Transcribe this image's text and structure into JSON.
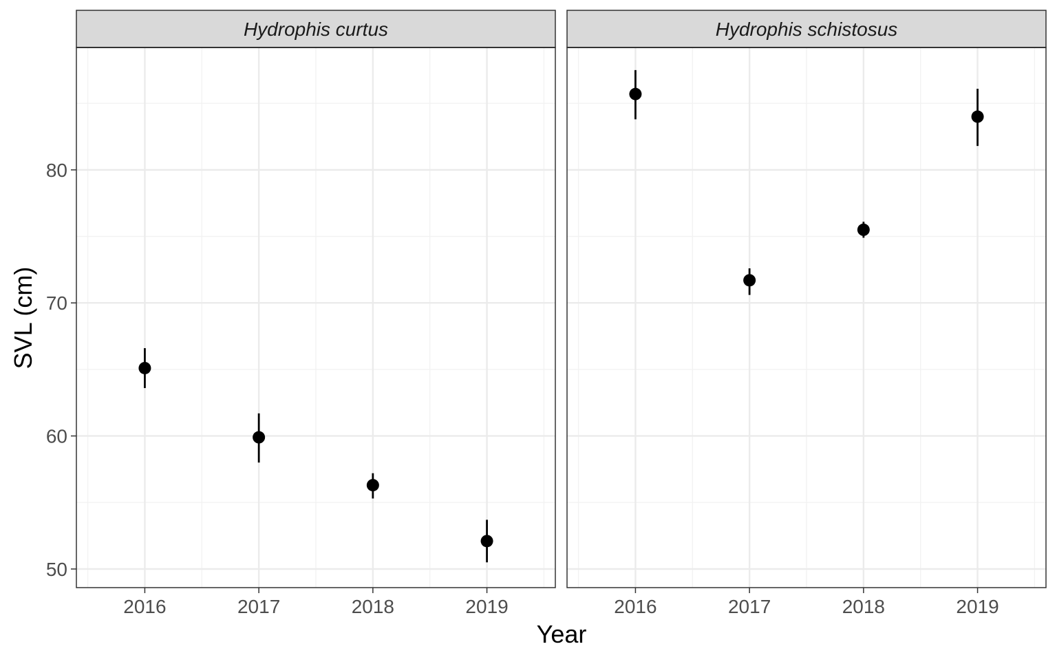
{
  "chart_data": {
    "type": "scatter",
    "title": "",
    "xlabel": "Year",
    "ylabel": "SVL (cm)",
    "ylim": [
      48.6,
      89.2
    ],
    "y_ticks": [
      "50",
      "60",
      "70",
      "80"
    ],
    "x_categories": [
      "2016",
      "2017",
      "2018",
      "2019"
    ],
    "grid": true,
    "error_bars": true,
    "point_color": "#000000",
    "panels": [
      {
        "name": "Hydrophis curtus",
        "points": [
          {
            "x": "2016",
            "y": 65.1,
            "low": 63.6,
            "high": 66.6
          },
          {
            "x": "2017",
            "y": 59.9,
            "low": 58.0,
            "high": 61.7
          },
          {
            "x": "2018",
            "y": 56.3,
            "low": 55.3,
            "high": 57.2
          },
          {
            "x": "2019",
            "y": 52.1,
            "low": 50.5,
            "high": 53.7
          }
        ]
      },
      {
        "name": "Hydrophis schistosus",
        "points": [
          {
            "x": "2016",
            "y": 85.7,
            "low": 83.8,
            "high": 87.5
          },
          {
            "x": "2017",
            "y": 71.7,
            "low": 70.6,
            "high": 72.6
          },
          {
            "x": "2018",
            "y": 75.5,
            "low": 74.9,
            "high": 76.1
          },
          {
            "x": "2019",
            "y": 84.0,
            "low": 81.8,
            "high": 86.1
          }
        ]
      }
    ]
  }
}
